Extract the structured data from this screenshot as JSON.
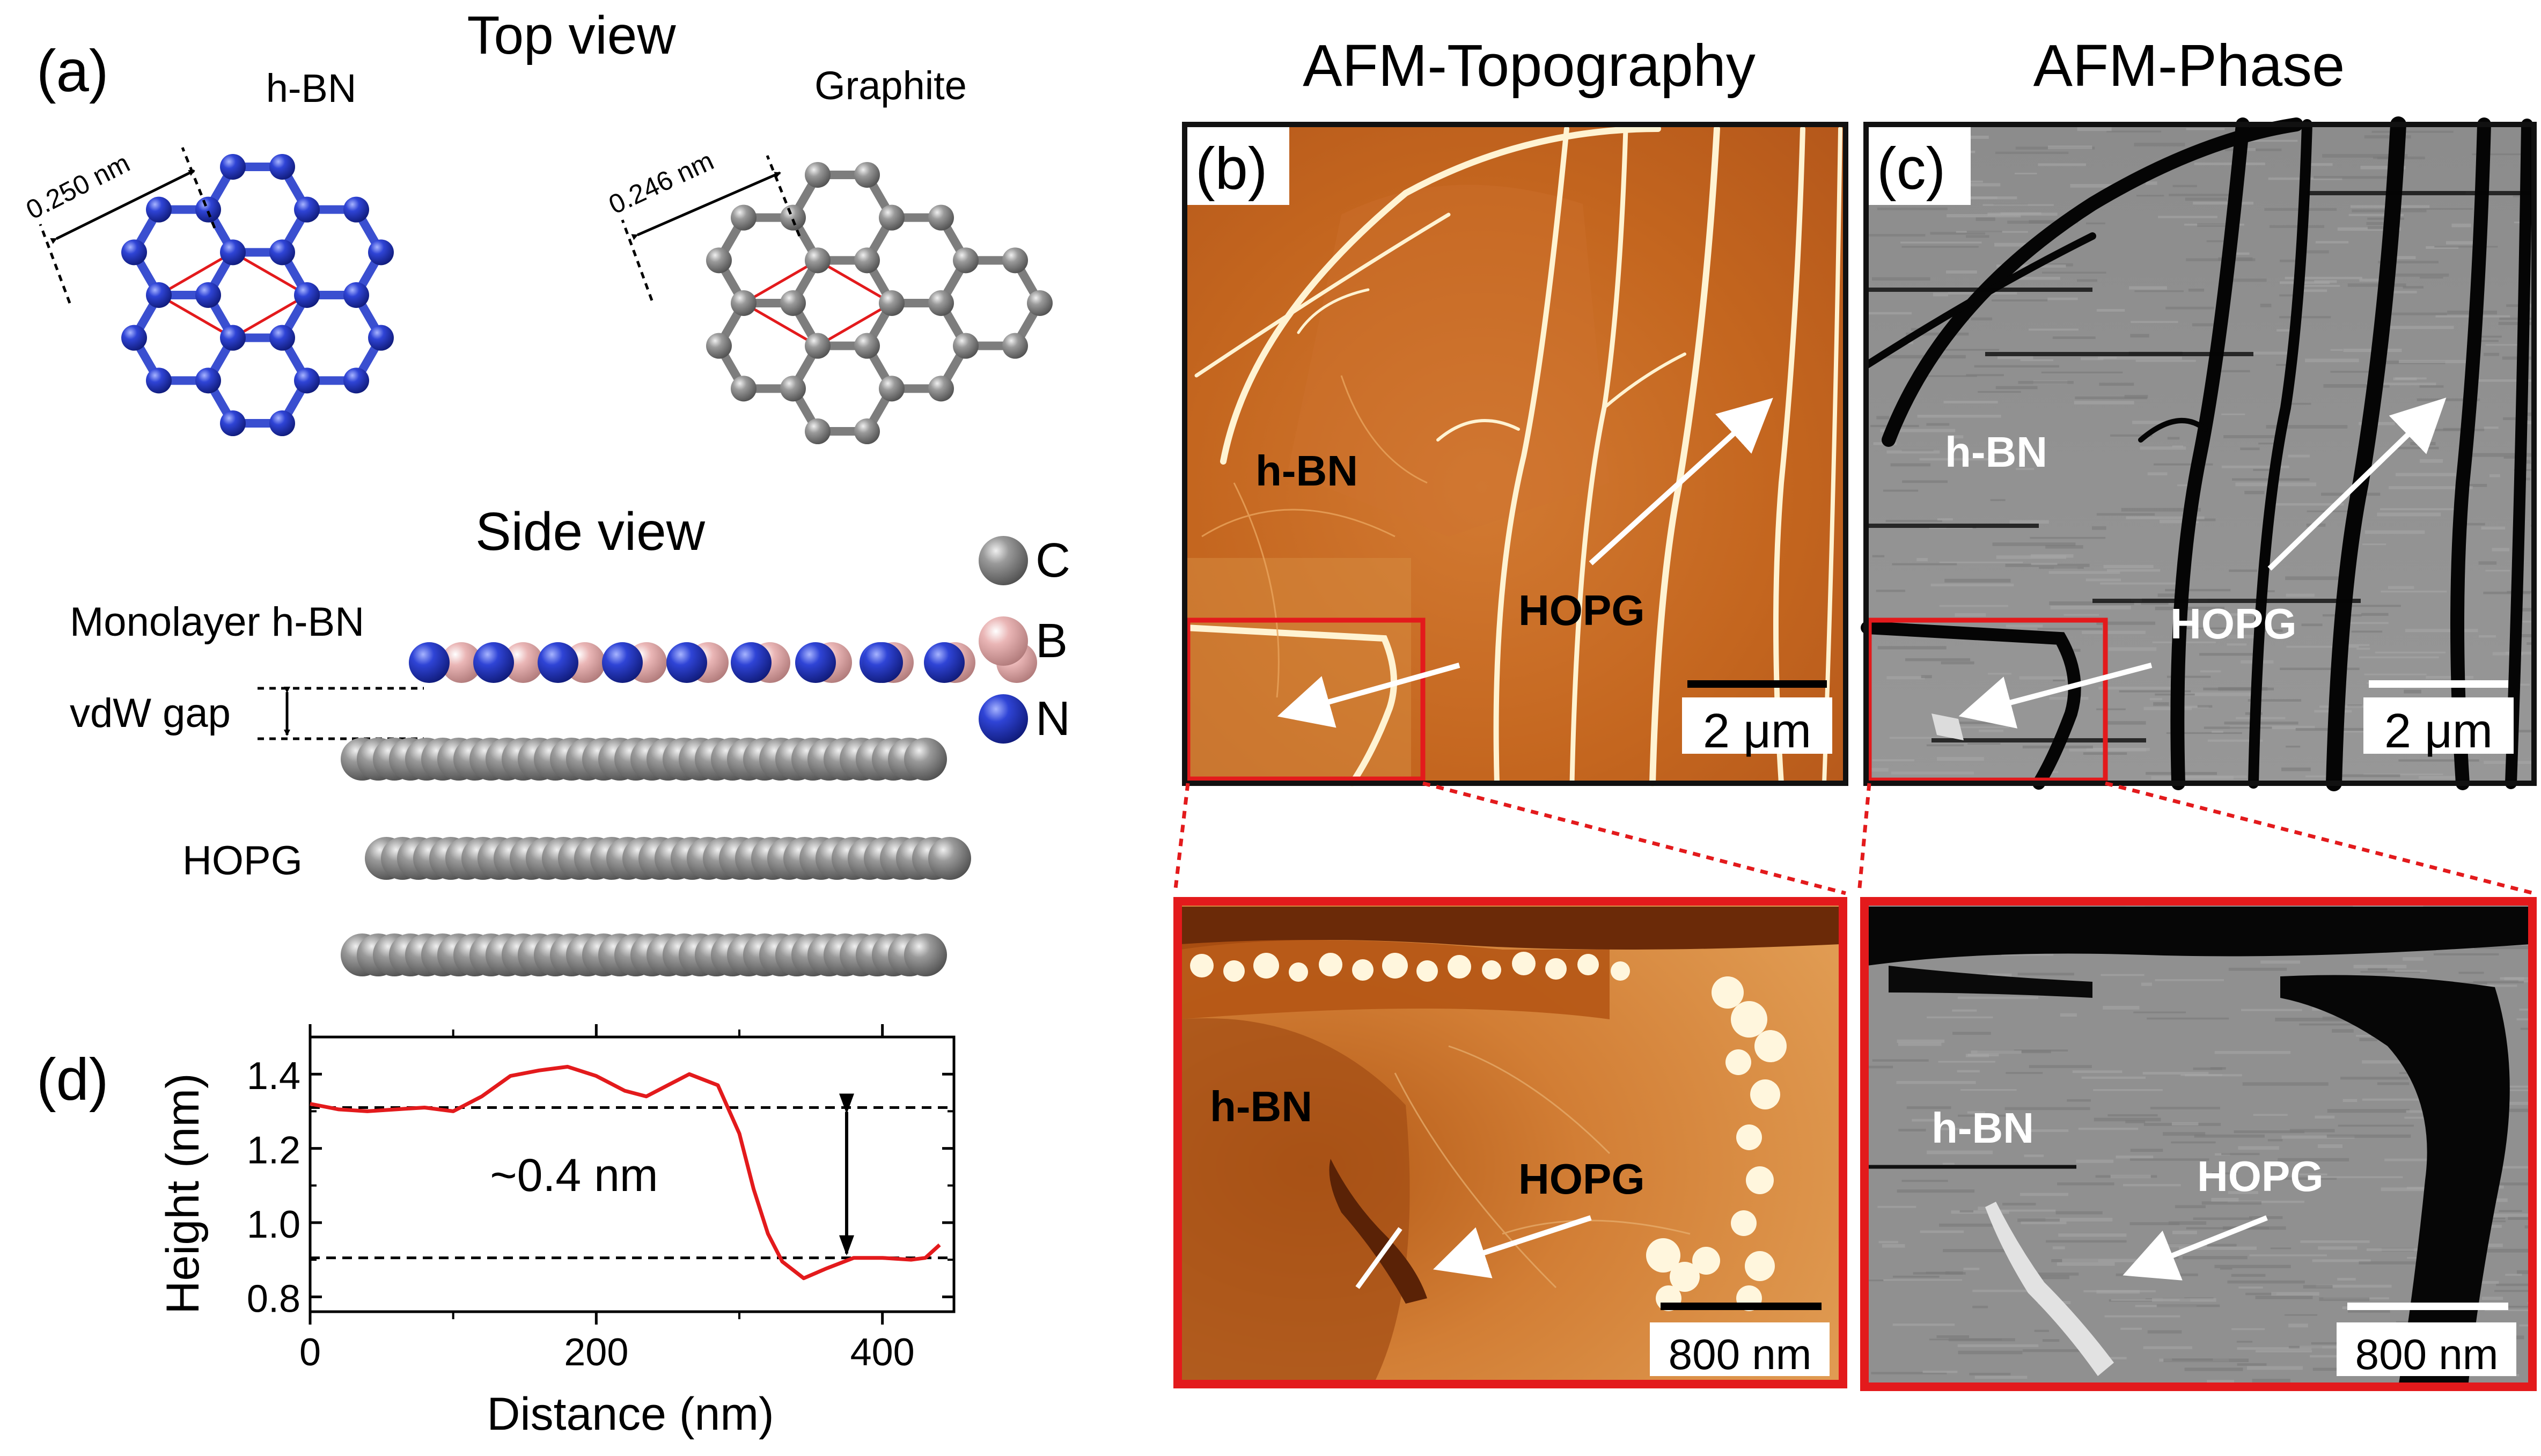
{
  "figure": {
    "panel_a": {
      "label": "(a)",
      "top_view_title": "Top view",
      "hbn_title": "h-BN",
      "graphite_title": "Graphite",
      "hbn_lattice": "0.250 nm",
      "graphite_lattice": "0.246 nm",
      "side_view_title": "Side view",
      "monolayer_label": "Monolayer h-BN",
      "vdw_label": "vdW gap",
      "hopg_label": "HOPG",
      "legend": [
        {
          "symbol": "C",
          "color": "#7f7f7f"
        },
        {
          "symbol": "B",
          "color": "#e6aaaa"
        },
        {
          "symbol": "N",
          "color": "#2538c8"
        }
      ]
    },
    "panel_b": {
      "title": "AFM-Topography",
      "label": "(b)",
      "hbn": "h-BN",
      "hopg": "HOPG",
      "scale": "2 μm",
      "zoom_hbn": "h-BN",
      "zoom_hopg": "HOPG",
      "zoom_scale": "800 nm"
    },
    "panel_c": {
      "title": "AFM-Phase",
      "label": "(c)",
      "hbn": "h-BN",
      "hopg": "HOPG",
      "scale": "2 μm",
      "zoom_hbn": "h-BN",
      "zoom_hopg": "HOPG",
      "zoom_scale": "800 nm"
    },
    "panel_d": {
      "label": "(d)",
      "annotation": "~0.4 nm"
    },
    "colors": {
      "red": "#e31a1c",
      "boron": "#e6aaaa",
      "nitrogen": "#2538c8",
      "carbon": "#7f7f7f"
    }
  },
  "chart_data": {
    "type": "line",
    "xlabel": "Distance (nm)",
    "ylabel": "Height (nm)",
    "xlim": [
      0,
      450
    ],
    "ylim": [
      0.76,
      1.5
    ],
    "xticks": [
      "0",
      "200",
      "400"
    ],
    "yticks": [
      "0.8",
      "1.0",
      "1.2",
      "1.4"
    ],
    "reference_lines": [
      1.31,
      0.905
    ],
    "x": [
      0,
      20,
      40,
      60,
      80,
      100,
      120,
      140,
      160,
      180,
      200,
      220,
      235,
      250,
      265,
      285,
      300,
      310,
      320,
      330,
      345,
      360,
      380,
      400,
      420,
      430,
      440
    ],
    "y": [
      1.32,
      1.305,
      1.3,
      1.305,
      1.31,
      1.3,
      1.34,
      1.395,
      1.41,
      1.42,
      1.395,
      1.355,
      1.34,
      1.37,
      1.4,
      1.37,
      1.24,
      1.09,
      0.97,
      0.895,
      0.85,
      0.875,
      0.905,
      0.905,
      0.9,
      0.905,
      0.94
    ]
  }
}
